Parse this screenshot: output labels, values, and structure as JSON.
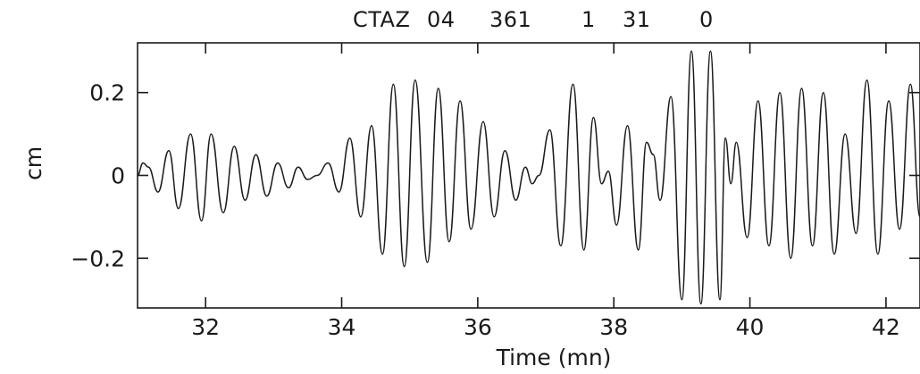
{
  "title_parts": [
    "CTAZ",
    "04",
    "361",
    "1",
    "31",
    "0"
  ],
  "chart_data": {
    "type": "line",
    "xlabel": "Time (mn)",
    "ylabel": "cm",
    "xlim": [
      31.0,
      42.5
    ],
    "ylim": [
      -0.32,
      0.32
    ],
    "x_ticks": [
      32,
      34,
      36,
      38,
      40,
      42
    ],
    "x_tick_labels": [
      "32",
      "34",
      "36",
      "38",
      "40",
      "42"
    ],
    "y_ticks": [
      0.2,
      0,
      -0.2
    ],
    "y_tick_labels": [
      "0.2",
      "0",
      "−0.2"
    ],
    "grid": false,
    "x": [
      31.0,
      31.08,
      31.16,
      31.3,
      31.46,
      31.6,
      31.78,
      31.94,
      32.08,
      32.26,
      32.42,
      32.58,
      32.74,
      32.9,
      33.06,
      33.22,
      33.36,
      33.5,
      33.64,
      33.8,
      33.96,
      34.12,
      34.28,
      34.44,
      34.6,
      34.76,
      34.92,
      35.08,
      35.26,
      35.42,
      35.58,
      35.74,
      35.9,
      36.08,
      36.24,
      36.4,
      36.56,
      36.7,
      36.8,
      36.9,
      37.06,
      37.22,
      37.4,
      37.56,
      37.7,
      37.82,
      37.92,
      38.04,
      38.2,
      38.36,
      38.48,
      38.58,
      38.68,
      38.84,
      39.0,
      39.14,
      39.28,
      39.42,
      39.56,
      39.64,
      39.72,
      39.8,
      39.96,
      40.12,
      40.28,
      40.44,
      40.6,
      40.76,
      40.92,
      41.08,
      41.24,
      41.4,
      41.56,
      41.72,
      41.88,
      42.04,
      42.2,
      42.36,
      42.5
    ],
    "y": [
      0.0,
      0.03,
      0.02,
      -0.04,
      0.06,
      -0.08,
      0.1,
      -0.11,
      0.1,
      -0.09,
      0.07,
      -0.06,
      0.05,
      -0.05,
      0.03,
      -0.03,
      0.02,
      -0.01,
      0.0,
      0.03,
      -0.04,
      0.09,
      -0.1,
      0.12,
      -0.19,
      0.22,
      -0.22,
      0.23,
      -0.21,
      0.21,
      -0.16,
      0.18,
      -0.13,
      0.13,
      -0.1,
      0.06,
      -0.06,
      0.02,
      -0.02,
      0.0,
      0.11,
      -0.17,
      0.22,
      -0.18,
      0.14,
      -0.02,
      0.01,
      -0.12,
      0.12,
      -0.18,
      0.08,
      0.05,
      -0.06,
      0.19,
      -0.3,
      0.3,
      -0.31,
      0.3,
      -0.3,
      0.09,
      -0.02,
      0.08,
      -0.15,
      0.18,
      -0.17,
      0.2,
      -0.2,
      0.21,
      -0.17,
      0.2,
      -0.19,
      0.1,
      -0.14,
      0.23,
      -0.19,
      0.18,
      -0.13,
      0.22,
      -0.1
    ]
  }
}
